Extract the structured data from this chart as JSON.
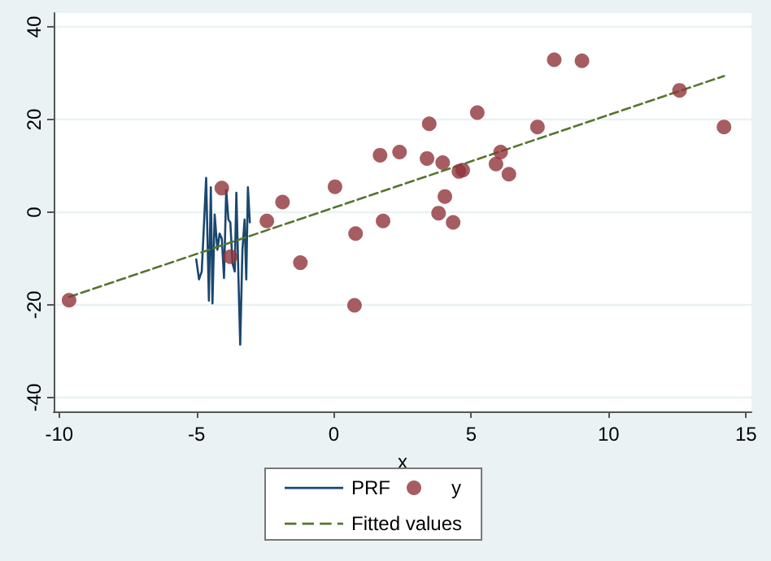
{
  "chart_data": {
    "type": "scatter",
    "xlabel": "x",
    "xlim": [
      -10.2,
      15.2
    ],
    "xticks": [
      -10,
      -5,
      0,
      5,
      10,
      15
    ],
    "ylim": [
      -43,
      43
    ],
    "yticks": [
      -40,
      -20,
      0,
      20,
      40
    ],
    "grid": "y",
    "legend": "bottom",
    "series": [
      {
        "name": "PRF",
        "type": "line",
        "color": "#1a476f",
        "marker": "none",
        "line_style": "solid",
        "x": [
          -5.01,
          -4.91,
          -4.81,
          -4.65,
          -4.55,
          -4.48,
          -4.42,
          -4.34,
          -4.24,
          -4.16,
          -4.08,
          -4.0,
          -3.92,
          -3.84,
          -3.77,
          -3.69,
          -3.61,
          -3.55,
          -3.47,
          -3.41,
          -3.33,
          -3.25,
          -3.19,
          -3.13,
          -3.06
        ],
        "values": [
          -10.2,
          -14.5,
          -12.8,
          7.4,
          -19.1,
          5.4,
          -19.7,
          -0.5,
          -8.1,
          -4.6,
          -5.7,
          -14.2,
          4.8,
          -1.6,
          -2.2,
          -11.0,
          -12.8,
          4.2,
          -15.2,
          -28.6,
          -8.1,
          -1.6,
          -14.5,
          5.4,
          -2.2
        ]
      },
      {
        "name": "y",
        "type": "scatter",
        "color": "#90353b",
        "marker": "circle",
        "x": [
          -9.64,
          -4.08,
          -3.77,
          -2.44,
          -1.87,
          -1.22,
          0.04,
          0.79,
          0.75,
          1.68,
          1.79,
          2.39,
          3.39,
          3.47,
          3.81,
          3.96,
          4.04,
          4.34,
          4.55,
          4.69,
          5.22,
          5.9,
          6.07,
          6.37,
          7.41,
          8.02,
          9.03,
          12.58,
          14.2
        ],
        "values": [
          -19.0,
          5.2,
          -9.6,
          -1.9,
          2.2,
          -10.9,
          5.5,
          -4.6,
          -20.1,
          12.3,
          -1.9,
          13.0,
          11.6,
          19.1,
          -0.2,
          10.7,
          3.4,
          -2.2,
          8.8,
          9.1,
          21.5,
          10.4,
          13.0,
          8.2,
          18.4,
          32.9,
          32.7,
          26.3,
          18.4
        ]
      },
      {
        "name": "Fitted values",
        "type": "line",
        "color": "#55752f",
        "marker": "none",
        "line_style": "dashed",
        "x": [
          -9.64,
          14.2
        ],
        "values": [
          -18.3,
          29.4
        ]
      }
    ]
  }
}
